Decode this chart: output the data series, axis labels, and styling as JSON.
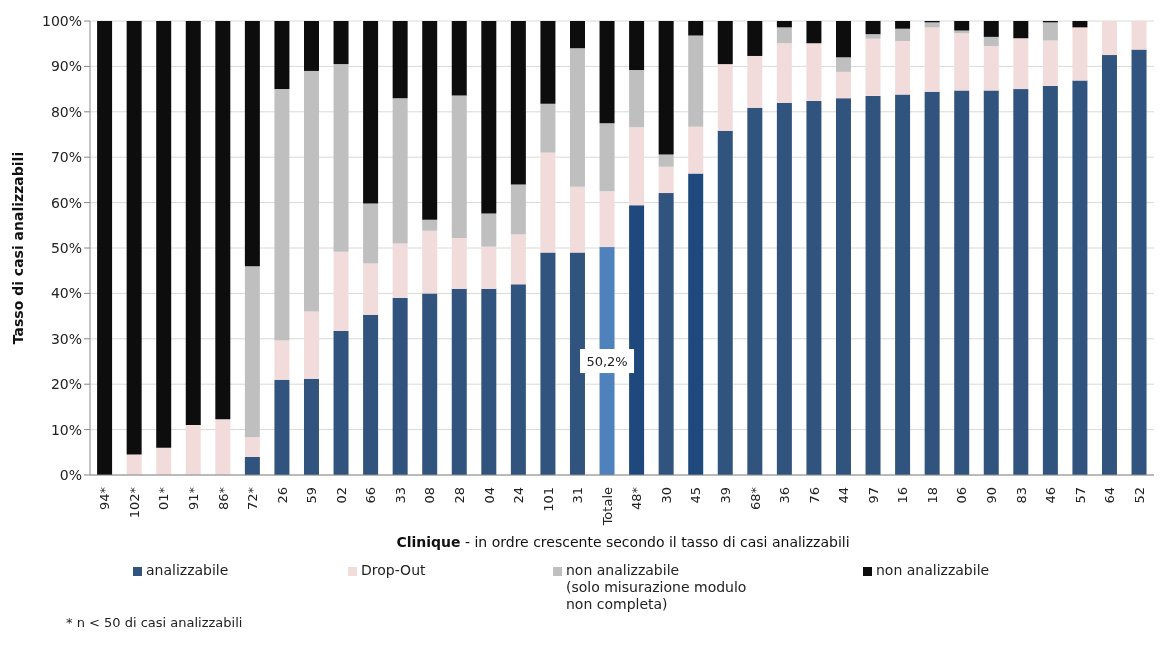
{
  "chart_data": {
    "type": "bar",
    "stacked": true,
    "xlabel": "Clinique - in ordre crescente secondo il tasso di casi analizzabili",
    "ylabel": "Tasso di casi analizzabili",
    "categories": [
      "94*",
      "102*",
      "01*",
      "91*",
      "86*",
      "72*",
      "26",
      "59",
      "02",
      "66",
      "33",
      "08",
      "28",
      "04",
      "24",
      "101",
      "31",
      "Totale",
      "48*",
      "30",
      "45",
      "39",
      "68*",
      "36",
      "76",
      "44",
      "97",
      "16",
      "18",
      "06",
      "90",
      "83",
      "46",
      "57",
      "64",
      "52"
    ],
    "series": [
      {
        "name": "analizzabile",
        "color": "#31547e",
        "colors": [
          "#31547e",
          "#31547e",
          "#31547e",
          "#31547e",
          "#31547e",
          "#31547e",
          "#31547e",
          "#31547e",
          "#31547e",
          "#31547e",
          "#31547e",
          "#31547e",
          "#31547e",
          "#31547e",
          "#31547e",
          "#31547e",
          "#31547e",
          "#4f81bd",
          "#1f497d",
          "#31547e",
          "#1f497d",
          "#31547e",
          "#31547e",
          "#31547e",
          "#31547e",
          "#31547e",
          "#31547e",
          "#31547e",
          "#31547e",
          "#31547e",
          "#31547e",
          "#31547e",
          "#31547e",
          "#31547e",
          "#31547e",
          "#31547e"
        ],
        "values": [
          0,
          0,
          0,
          0,
          0,
          4,
          21,
          21.2,
          31.7,
          35.3,
          39,
          40,
          41,
          41,
          42,
          49,
          49,
          50.2,
          59.4,
          62.1,
          66.4,
          75.8,
          80.9,
          82,
          82.4,
          83,
          83.5,
          83.8,
          84.4,
          84.7,
          84.7,
          85,
          85.7,
          86.9,
          92.5,
          93.7
        ],
        "value_labels": [
          null,
          null,
          null,
          null,
          null,
          null,
          null,
          null,
          null,
          null,
          null,
          null,
          null,
          null,
          null,
          null,
          null,
          "50,2%",
          null,
          null,
          null,
          null,
          null,
          null,
          null,
          null,
          null,
          null,
          null,
          null,
          null,
          null,
          null,
          null,
          null,
          null
        ]
      },
      {
        "name": "Drop-Out",
        "color": "#f2dcdb",
        "values": [
          0,
          4.5,
          6,
          11,
          12.3,
          4.3,
          8.6,
          14.8,
          17.5,
          11.3,
          12,
          13.8,
          11.2,
          9.3,
          11,
          22,
          14.5,
          12.3,
          17.2,
          5.8,
          10.3,
          14.7,
          11.4,
          13.1,
          12.7,
          5.8,
          12.6,
          11.8,
          14.2,
          12.6,
          9.8,
          11.2,
          10,
          11.7,
          7.5,
          6.3
        ]
      },
      {
        "name": "non analizzabile\n(solo misurazione modulo\nnon completa)",
        "color": "#bfbfbf",
        "values": [
          0,
          0,
          0,
          0,
          0,
          37.7,
          55.4,
          53,
          41.3,
          13.2,
          32,
          2.4,
          31.4,
          7.3,
          11,
          10.8,
          30.5,
          15,
          12.6,
          2.7,
          20.1,
          0,
          0,
          3.5,
          0,
          3.2,
          1,
          2.7,
          1.1,
          0.6,
          2,
          0,
          4,
          0,
          0,
          0
        ]
      },
      {
        "name": "non analizzabile",
        "color": "#0d0d0d",
        "values": [
          100,
          95.5,
          94,
          89,
          87.7,
          54,
          15,
          11,
          9.5,
          40.2,
          17,
          43.8,
          16.4,
          42.4,
          36,
          18.2,
          6,
          22.5,
          10.8,
          29.4,
          3.2,
          9.5,
          7.7,
          1.4,
          4.9,
          8,
          2.9,
          1.7,
          0.3,
          2.1,
          3.5,
          3.8,
          0.3,
          1.4,
          0,
          0
        ]
      }
    ],
    "ylim": [
      0,
      100
    ],
    "yticks": [
      {
        "value": 0,
        "label": "0%"
      },
      {
        "value": 10,
        "label": "10%"
      },
      {
        "value": 20,
        "label": "20%"
      },
      {
        "value": 30,
        "label": "30%"
      },
      {
        "value": 40,
        "label": "40%"
      },
      {
        "value": 50,
        "label": "50%"
      },
      {
        "value": 60,
        "label": "60%"
      },
      {
        "value": 70,
        "label": "70%"
      },
      {
        "value": 80,
        "label": "80%"
      },
      {
        "value": 90,
        "label": "90%"
      },
      {
        "value": 100,
        "label": "100%"
      }
    ],
    "grid": "y",
    "legend": "bottom",
    "annotations": [
      "* n < 50 di casi analizzabili"
    ]
  }
}
